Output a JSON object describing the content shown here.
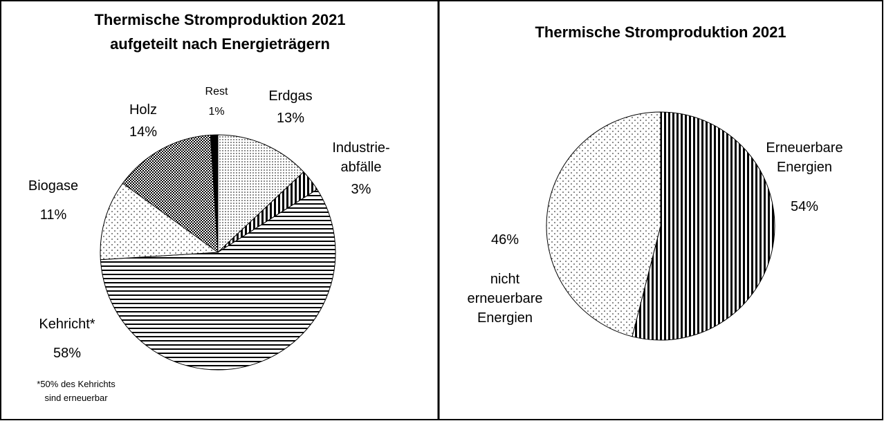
{
  "chart_data": [
    {
      "type": "pie",
      "title": "Thermische Stromproduktion 2021",
      "subtitle": "aufgeteilt nach Energieträgern",
      "categories": [
        "Erdgas",
        "Industrie-\nabfälle",
        "Kehricht*",
        "Biogase",
        "Holz",
        "Rest"
      ],
      "values": [
        13,
        3,
        58,
        11,
        14,
        1
      ],
      "value_labels": [
        "13%",
        "3%",
        "58%",
        "11%",
        "14%",
        "1%"
      ],
      "patterns": [
        "dotsDense",
        "vstripes",
        "hstripes",
        "dotsSparse",
        "crosshatch",
        "solid"
      ],
      "footnote": "*50% des Kehrichts\nsind erneuerbar"
    },
    {
      "type": "pie",
      "title": "Thermische Stromproduktion 2021",
      "categories": [
        "Erneuerbare\nEnergien",
        "nicht\nerneuerbare\nEnergien"
      ],
      "values": [
        54,
        46
      ],
      "value_labels": [
        "54%",
        "46%"
      ],
      "patterns": [
        "vstripes",
        "dotsSparse"
      ]
    }
  ]
}
